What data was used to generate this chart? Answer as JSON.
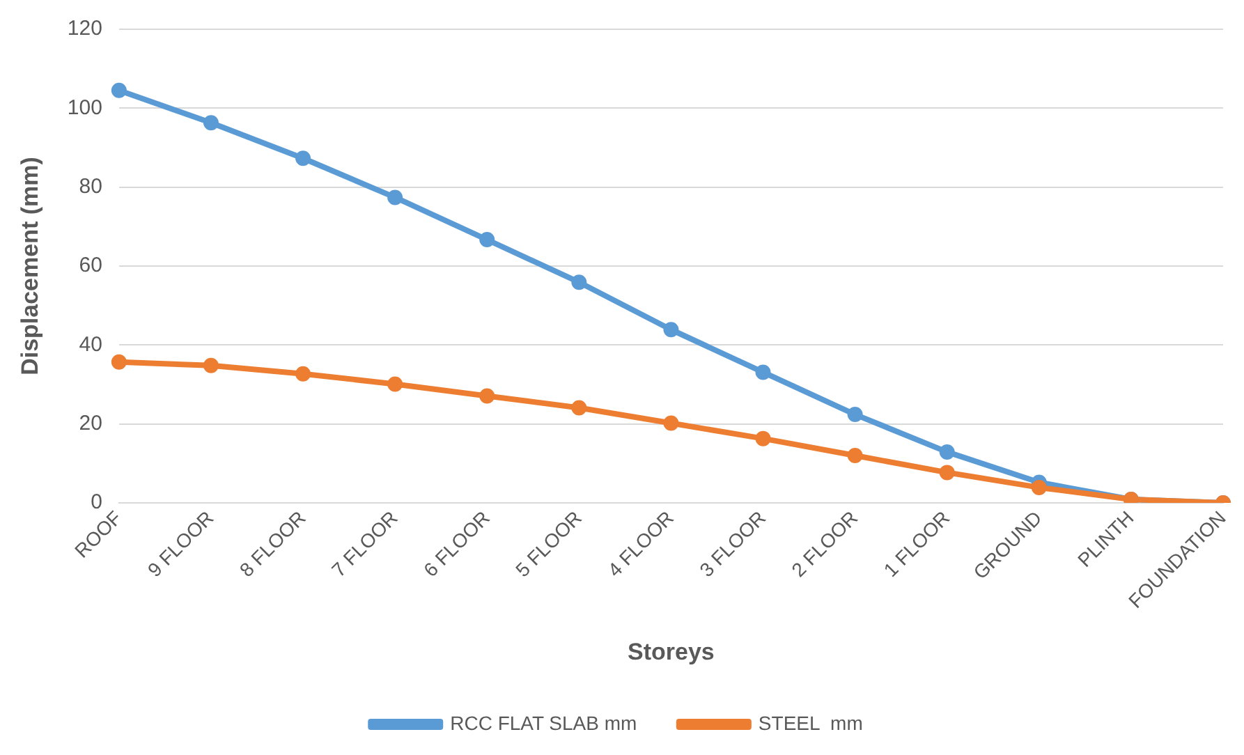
{
  "chart_data": {
    "type": "line",
    "xlabel": "Storeys",
    "ylabel": "Displacement (mm)",
    "categories": [
      "ROOF",
      "9 FLOOR",
      "8 FLOOR",
      "7 FLOOR",
      "6 FLOOR",
      "5 FLOOR",
      "4 FLOOR",
      "3 FLOOR",
      "2 FLOOR",
      "1 FLOOR",
      "GROUND",
      "PLINTH",
      "FOUNDATION"
    ],
    "series": [
      {
        "name": "RCC FLAT SLAB mm",
        "color": "#5b9bd5",
        "values": [
          104.5,
          96.3,
          87.3,
          77.4,
          66.7,
          55.9,
          43.9,
          33.1,
          22.4,
          12.9,
          5.2,
          0.9,
          0
        ]
      },
      {
        "name": "STEEL  mm",
        "color": "#ed7d31",
        "values": [
          35.7,
          34.8,
          32.7,
          30.1,
          27.1,
          24.1,
          20.2,
          16.3,
          12.0,
          7.7,
          3.9,
          0.9,
          0
        ]
      }
    ],
    "ylim": [
      0,
      120
    ],
    "yticks": [
      0,
      20,
      40,
      60,
      80,
      100,
      120
    ],
    "grid": "y",
    "legend": "bottom",
    "marker": "circle",
    "line_style": "solid"
  }
}
